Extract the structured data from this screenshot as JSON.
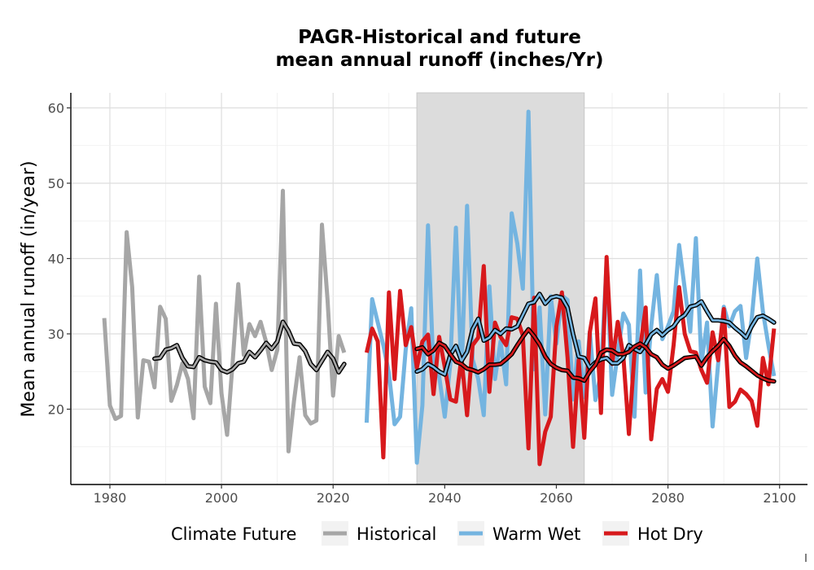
{
  "chart_data": {
    "type": "line",
    "title": "PAGR-Historical and future",
    "subtitle": "mean annual runoff (inches/Yr)",
    "xlabel": "",
    "ylabel": "Mean annual runoff (in/year)",
    "xlim": [
      1973,
      2105
    ],
    "ylim": [
      10,
      62
    ],
    "x_ticks": [
      "1980",
      "2000",
      "2020",
      "2040",
      "2060",
      "2080",
      "2100"
    ],
    "y_ticks": [
      "20",
      "30",
      "40",
      "50",
      "60"
    ],
    "grid": true,
    "shaded_period": [
      2035,
      2065
    ],
    "legend": {
      "title": "Climate Future",
      "position": "bottom",
      "entries": [
        "Historical",
        "Warm Wet",
        "Hot Dry"
      ]
    },
    "colors": {
      "Historical": "#a6a6a6",
      "Warm Wet": "#74b4e0",
      "Hot Dry": "#d7191c",
      "moving_average": "#000000",
      "shaded_period": "#dcdcdc"
    },
    "series": [
      {
        "name": "Historical",
        "x": [
          1979,
          1980,
          1981,
          1982,
          1983,
          1984,
          1985,
          1986,
          1987,
          1988,
          1989,
          1990,
          1991,
          1992,
          1993,
          1994,
          1995,
          1996,
          1997,
          1998,
          1999,
          2000,
          2001,
          2002,
          2003,
          2004,
          2005,
          2006,
          2007,
          2008,
          2009,
          2010,
          2011,
          2012,
          2013,
          2014,
          2015,
          2016,
          2017,
          2018,
          2019,
          2020,
          2021,
          2022
        ],
        "values": [
          32.1,
          20.5,
          18.7,
          19.1,
          43.5,
          36.2,
          18.9,
          26.5,
          26.3,
          22.9,
          33.6,
          32.0,
          21.1,
          23.2,
          26.1,
          24.0,
          18.8,
          37.6,
          23.0,
          20.8,
          34.0,
          22.1,
          16.6,
          26.2,
          36.6,
          27.2,
          31.3,
          29.7,
          31.6,
          28.9,
          25.2,
          27.9,
          49.0,
          14.4,
          21.1,
          26.9,
          19.2,
          18.1,
          18.5,
          44.5,
          34.5,
          21.8,
          29.7,
          27.5
        ]
      },
      {
        "name": "Warm Wet",
        "x": [
          2026,
          2027,
          2028,
          2029,
          2030,
          2031,
          2032,
          2033,
          2034,
          2035,
          2036,
          2037,
          2038,
          2039,
          2040,
          2041,
          2042,
          2043,
          2044,
          2045,
          2046,
          2047,
          2048,
          2049,
          2050,
          2051,
          2052,
          2053,
          2054,
          2055,
          2056,
          2057,
          2058,
          2059,
          2060,
          2061,
          2062,
          2063,
          2064,
          2065,
          2066,
          2067,
          2068,
          2069,
          2070,
          2071,
          2072,
          2073,
          2074,
          2075,
          2076,
          2077,
          2078,
          2079,
          2080,
          2081,
          2082,
          2083,
          2084,
          2085,
          2086,
          2087,
          2088,
          2089,
          2090,
          2091,
          2092,
          2093,
          2094,
          2095,
          2096,
          2097,
          2098,
          2099
        ],
        "values": [
          18.2,
          34.6,
          31.5,
          28.5,
          24.8,
          18.0,
          19.0,
          27.9,
          33.4,
          12.9,
          20.5,
          44.4,
          24.7,
          24.4,
          19.0,
          26.0,
          44.1,
          24.3,
          47.0,
          26.6,
          24.0,
          19.2,
          36.3,
          24.0,
          29.0,
          23.3,
          46.0,
          42.0,
          36.0,
          59.5,
          25.3,
          33.5,
          19.3,
          35.0,
          28.7,
          35.1,
          34.5,
          21.3,
          29.0,
          21.6,
          30.3,
          21.2,
          24.8,
          39.5,
          21.9,
          27.4,
          32.7,
          31.2,
          19.0,
          38.4,
          22.2,
          31.0,
          37.8,
          29.3,
          31.0,
          33.0,
          41.8,
          36.0,
          30.3,
          42.7,
          26.2,
          31.5,
          17.7,
          26.1,
          33.6,
          31.0,
          33.0,
          33.7,
          26.8,
          31.9,
          40.0,
          33.0,
          28.5,
          24.4
        ]
      },
      {
        "name": "Hot Dry",
        "x": [
          2026,
          2027,
          2028,
          2029,
          2030,
          2031,
          2032,
          2033,
          2034,
          2035,
          2036,
          2037,
          2038,
          2039,
          2040,
          2041,
          2042,
          2043,
          2044,
          2045,
          2046,
          2047,
          2048,
          2049,
          2050,
          2051,
          2052,
          2053,
          2054,
          2055,
          2056,
          2057,
          2058,
          2059,
          2060,
          2061,
          2062,
          2063,
          2064,
          2065,
          2066,
          2067,
          2068,
          2069,
          2070,
          2071,
          2072,
          2073,
          2074,
          2075,
          2076,
          2077,
          2078,
          2079,
          2080,
          2081,
          2082,
          2083,
          2084,
          2085,
          2086,
          2087,
          2088,
          2089,
          2090,
          2091,
          2092,
          2093,
          2094,
          2095,
          2096,
          2097,
          2098,
          2099
        ],
        "values": [
          27.5,
          30.7,
          29.0,
          13.6,
          35.5,
          24.0,
          35.7,
          28.5,
          30.9,
          25.5,
          29.0,
          29.9,
          22.0,
          29.6,
          25.6,
          21.3,
          21.0,
          26.9,
          19.2,
          28.5,
          29.5,
          39.0,
          22.3,
          31.5,
          29.6,
          28.5,
          32.2,
          32.0,
          29.8,
          14.8,
          34.8,
          12.7,
          17.0,
          19.0,
          31.0,
          35.5,
          26.9,
          15.0,
          26.5,
          16.2,
          30.2,
          34.7,
          19.5,
          40.2,
          26.0,
          31.6,
          27.0,
          16.7,
          27.5,
          28.0,
          33.5,
          16.0,
          22.7,
          24.0,
          22.3,
          28.5,
          36.2,
          30.0,
          27.7,
          27.5,
          25.2,
          23.5,
          30.2,
          26.5,
          33.3,
          20.3,
          21.0,
          22.6,
          22.0,
          21.1,
          17.8,
          26.8,
          23.3,
          30.7
        ]
      },
      {
        "name": "Historical 10-yr moving average",
        "x": [
          1988,
          1989,
          1990,
          1991,
          1992,
          1993,
          1994,
          1995,
          1996,
          1997,
          1998,
          1999,
          2000,
          2001,
          2002,
          2003,
          2004,
          2005,
          2006,
          2007,
          2008,
          2009,
          2010,
          2011,
          2012,
          2013,
          2014,
          2015,
          2016,
          2017,
          2018,
          2019,
          2020,
          2021,
          2022
        ],
        "values": [
          26.7,
          26.8,
          27.9,
          28.1,
          28.5,
          26.8,
          25.7,
          25.6,
          26.9,
          26.5,
          26.3,
          26.2,
          25.2,
          24.9,
          25.3,
          26.1,
          26.3,
          27.6,
          26.9,
          27.8,
          28.8,
          28.0,
          29.0,
          31.6,
          30.4,
          28.7,
          28.6,
          27.7,
          26.0,
          25.2,
          26.4,
          27.6,
          26.7,
          24.9,
          26.0
        ]
      },
      {
        "name": "Warm Wet 10-yr moving average",
        "x": [
          2035,
          2036,
          2037,
          2038,
          2039,
          2040,
          2041,
          2042,
          2043,
          2044,
          2045,
          2046,
          2047,
          2048,
          2049,
          2050,
          2051,
          2052,
          2053,
          2054,
          2055,
          2056,
          2057,
          2058,
          2059,
          2060,
          2061,
          2062,
          2063,
          2064,
          2065,
          2066,
          2067,
          2068,
          2069,
          2070,
          2071,
          2072,
          2073,
          2074,
          2075,
          2076,
          2077,
          2078,
          2079,
          2080,
          2081,
          2082,
          2083,
          2084,
          2085,
          2086,
          2087,
          2088,
          2089,
          2090,
          2091,
          2092,
          2093,
          2094,
          2095,
          2096,
          2097,
          2098,
          2099
        ],
        "values": [
          25.0,
          25.3,
          26.0,
          25.6,
          25.0,
          24.6,
          27.2,
          28.4,
          26.4,
          27.6,
          30.6,
          32.0,
          29.1,
          29.5,
          30.5,
          30.0,
          30.7,
          30.6,
          31.0,
          32.5,
          34.0,
          34.2,
          35.3,
          34.0,
          34.8,
          35.0,
          34.8,
          33.5,
          30.0,
          27.0,
          26.8,
          25.5,
          26.2,
          26.6,
          26.8,
          26.1,
          26.1,
          26.8,
          28.5,
          28.0,
          27.6,
          28.6,
          29.9,
          30.5,
          29.8,
          30.5,
          31.0,
          32.0,
          32.5,
          33.6,
          33.8,
          34.3,
          33.0,
          31.8,
          31.8,
          31.7,
          31.5,
          30.8,
          30.2,
          29.5,
          31.0,
          32.2,
          32.4,
          32.0,
          31.5
        ]
      },
      {
        "name": "Hot Dry 10-yr moving average",
        "x": [
          2035,
          2036,
          2037,
          2038,
          2039,
          2040,
          2041,
          2042,
          2043,
          2044,
          2045,
          2046,
          2047,
          2048,
          2049,
          2050,
          2051,
          2052,
          2053,
          2054,
          2055,
          2056,
          2057,
          2058,
          2059,
          2060,
          2061,
          2062,
          2063,
          2064,
          2065,
          2066,
          2067,
          2068,
          2069,
          2070,
          2071,
          2072,
          2073,
          2074,
          2075,
          2076,
          2077,
          2078,
          2079,
          2080,
          2081,
          2082,
          2083,
          2084,
          2085,
          2086,
          2087,
          2088,
          2089,
          2090,
          2091,
          2092,
          2093,
          2094,
          2095,
          2096,
          2097,
          2098,
          2099
        ],
        "values": [
          28.0,
          28.2,
          27.3,
          27.8,
          28.8,
          28.4,
          27.3,
          26.3,
          26.0,
          25.4,
          25.2,
          24.9,
          25.3,
          25.9,
          25.9,
          26.0,
          26.6,
          27.3,
          28.5,
          29.6,
          30.6,
          29.7,
          28.6,
          27.0,
          26.0,
          25.5,
          25.2,
          25.1,
          24.2,
          24.1,
          23.8,
          25.0,
          25.9,
          27.5,
          27.9,
          27.8,
          27.3,
          27.3,
          27.6,
          28.3,
          28.7,
          28.2,
          27.3,
          26.9,
          25.9,
          25.4,
          25.8,
          26.3,
          26.8,
          26.9,
          27.0,
          25.8,
          26.9,
          27.7,
          28.4,
          29.3,
          28.4,
          27.1,
          26.2,
          25.7,
          25.1,
          24.5,
          24.1,
          23.8,
          23.7
        ]
      }
    ]
  }
}
